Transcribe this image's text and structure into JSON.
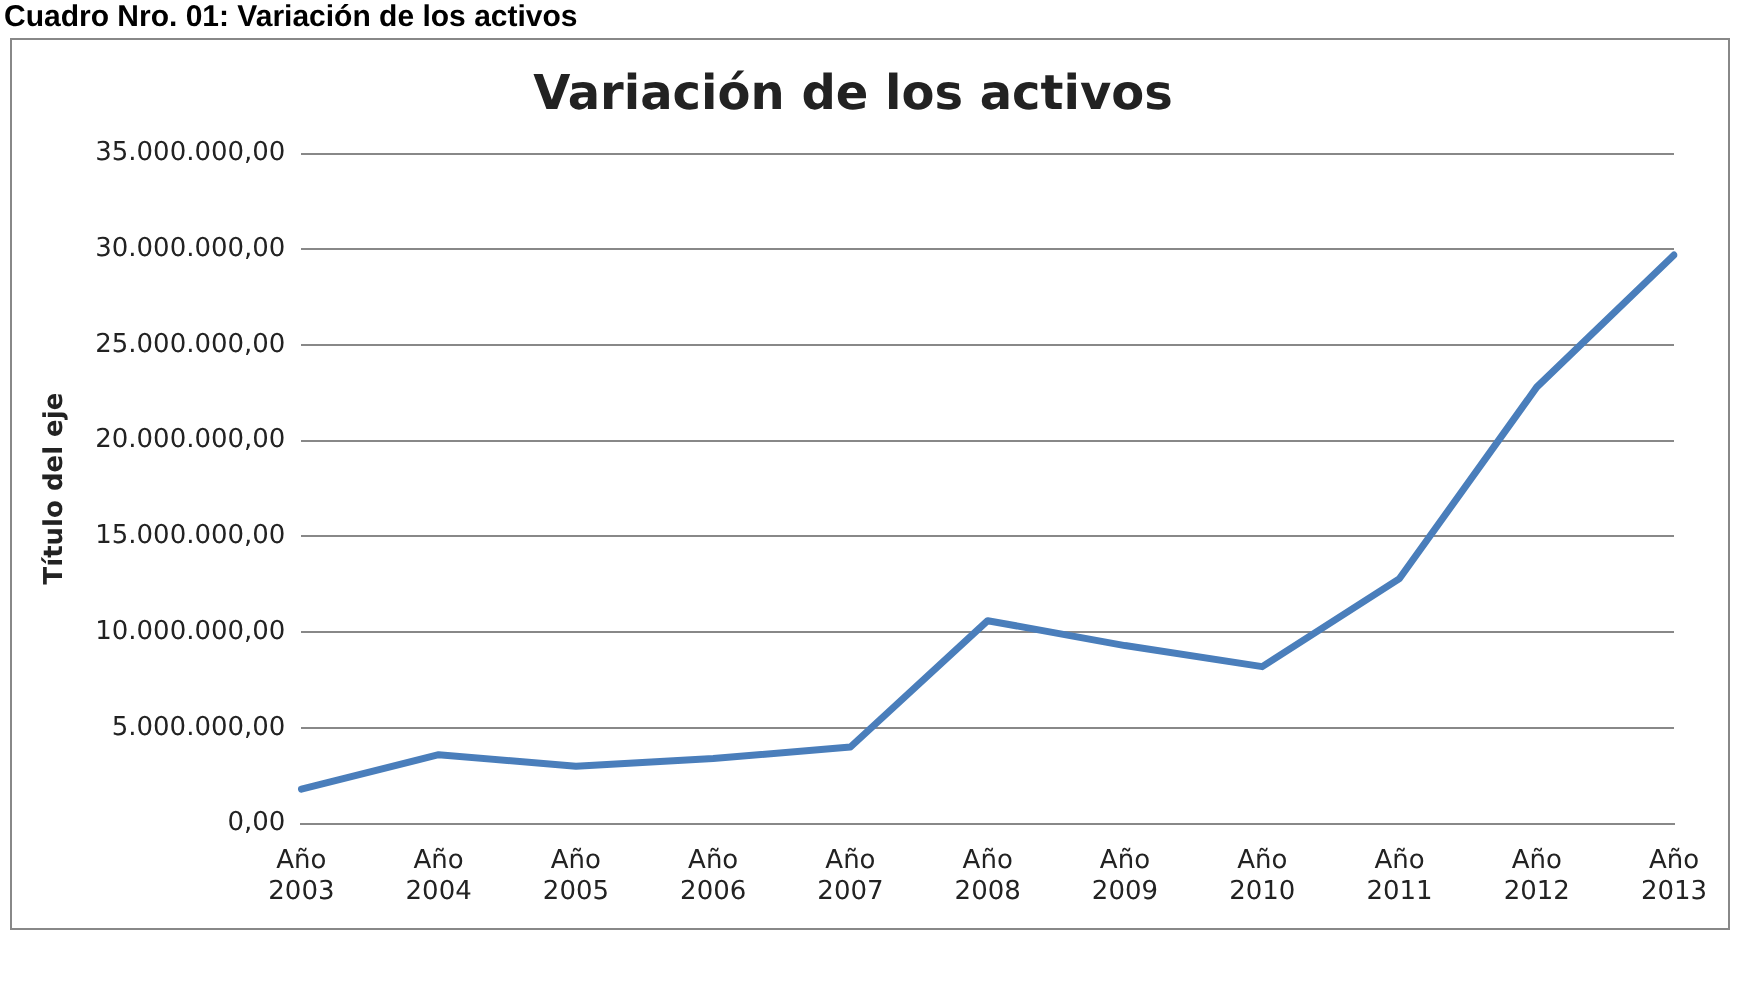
{
  "chart_data": {
    "type": "line",
    "title": "Variación de los activos",
    "ylabel": "Título del eje",
    "annotations": [
      "Cuadro Nro. 01: Variación de los activos"
    ],
    "categories": [
      "Año 2003",
      "Año 2004",
      "Año 2005",
      "Año 2006",
      "Año 2007",
      "Año 2008",
      "Año 2009",
      "Año 2010",
      "Año 2011",
      "Año 2012",
      "Año 2013"
    ],
    "series": [
      {
        "color": "#4a7ebb",
        "values": [
          1800000,
          3600000,
          3000000,
          3400000,
          4000000,
          10600000,
          9300000,
          8200000,
          12800000,
          22800000,
          29700000
        ]
      }
    ],
    "ylim": [
      0,
      35000000
    ],
    "yticks": [
      {
        "value": 0,
        "label": "0,00"
      },
      {
        "value": 5000000,
        "label": "5.000.000,00"
      },
      {
        "value": 10000000,
        "label": "10.000.000,00"
      },
      {
        "value": 15000000,
        "label": "15.000.000,00"
      },
      {
        "value": 20000000,
        "label": "20.000.000,00"
      },
      {
        "value": 25000000,
        "label": "25.000.000,00"
      },
      {
        "value": 30000000,
        "label": "30.000.000,00"
      },
      {
        "value": 35000000,
        "label": "35.000.000,00"
      }
    ],
    "grid": "y",
    "legend": false,
    "marker": "none",
    "line_style": "solid"
  }
}
